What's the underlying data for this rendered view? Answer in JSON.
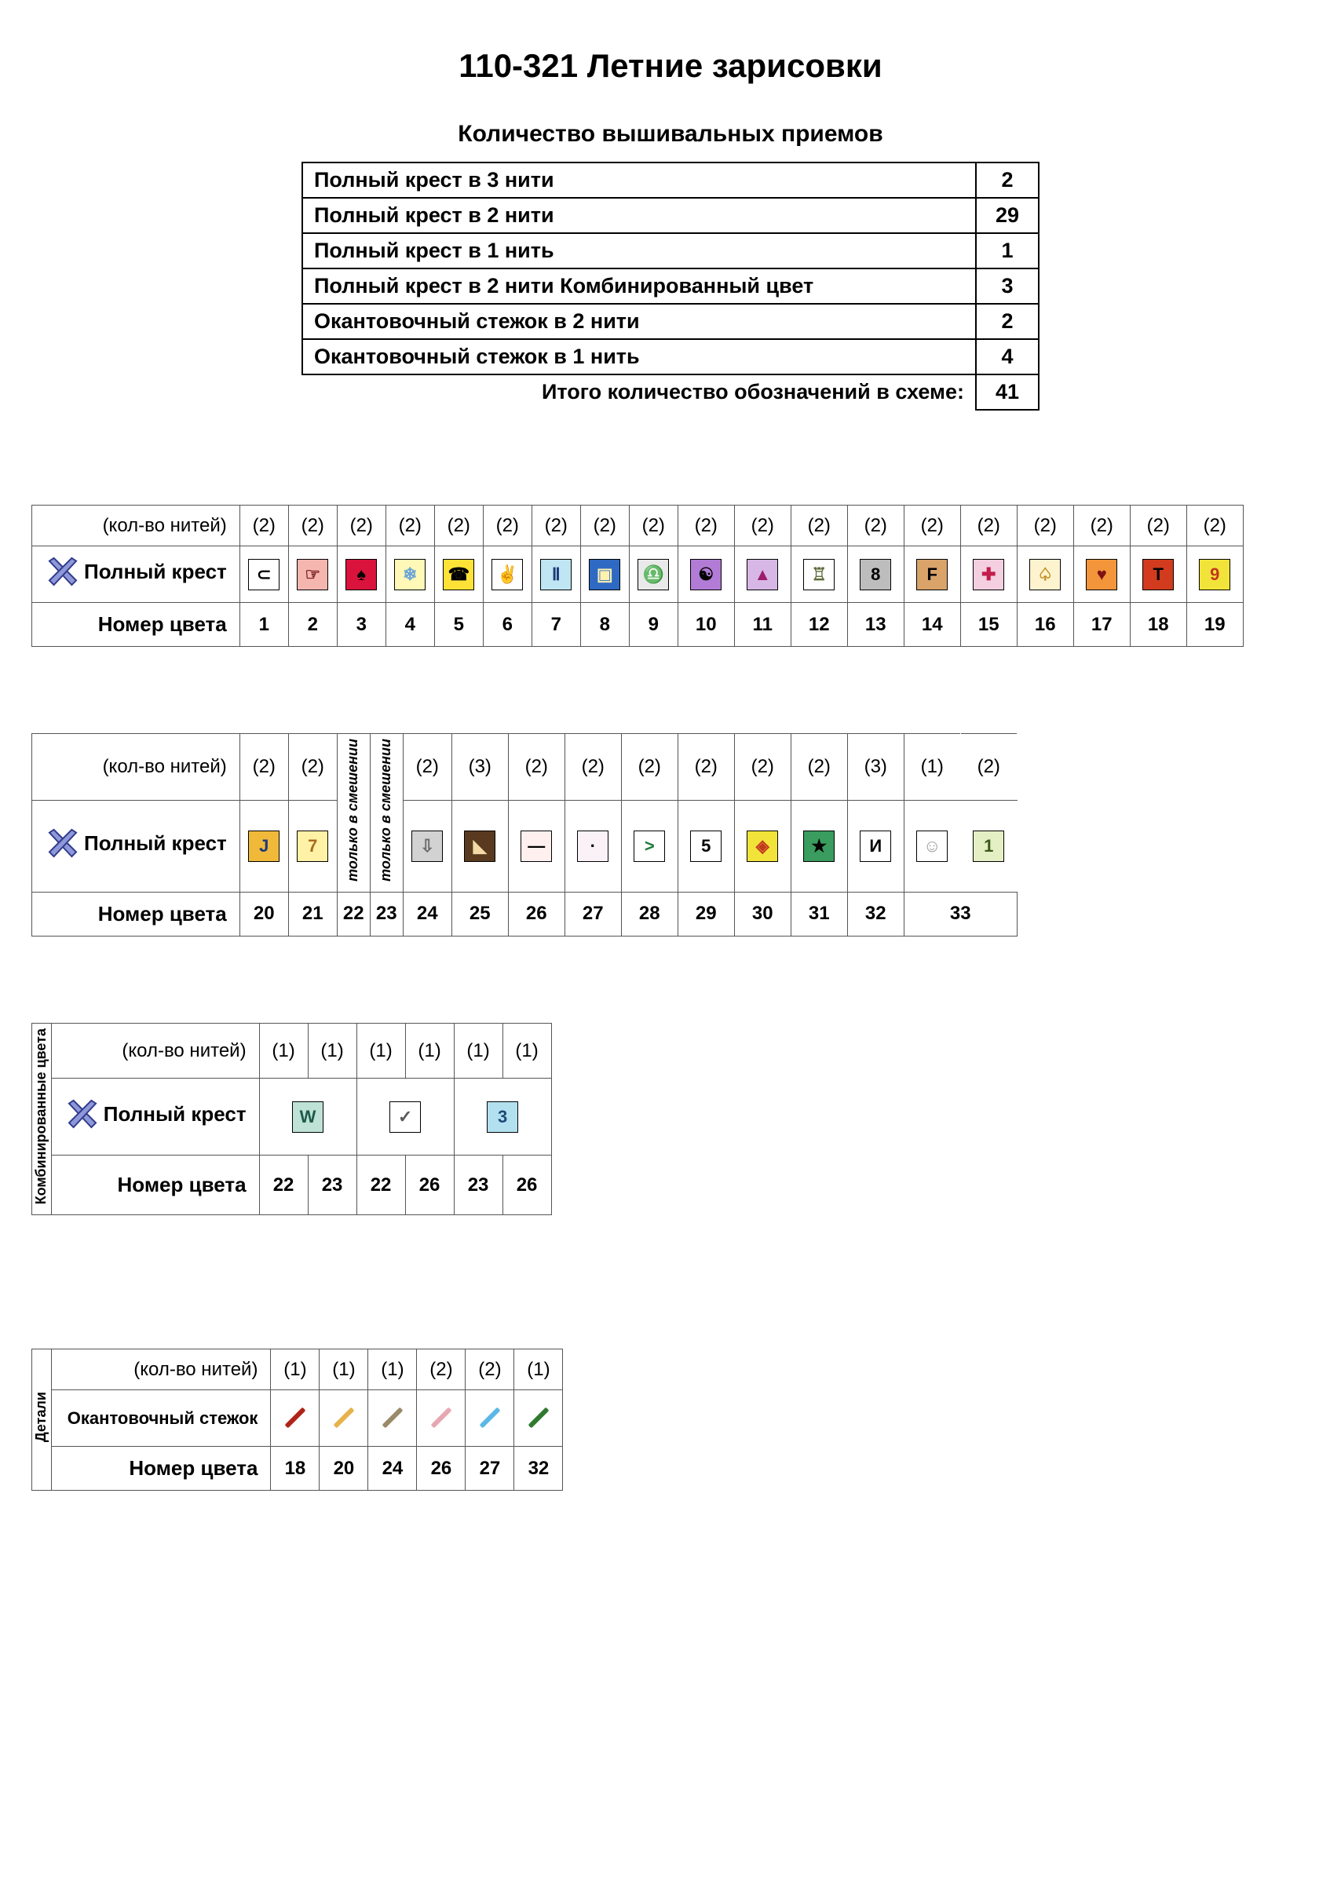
{
  "title": "110-321 Летние зарисовки",
  "subtitle": "Количество вышивальных приемов",
  "summary": {
    "rows": [
      {
        "label": "Полный крест в 3 нити",
        "value": "2"
      },
      {
        "label": "Полный крест в 2 нити",
        "value": "29"
      },
      {
        "label": "Полный крест в 1 нить",
        "value": "1"
      },
      {
        "label": "Полный крест в 2 нити Комбинированный цвет",
        "value": "3"
      },
      {
        "label": "Окантовочный стежок в 2 нити",
        "value": "2"
      },
      {
        "label": "Окантовочный стежок в 1 нить",
        "value": "4"
      }
    ],
    "total_label": "Итого количество обозначений в схеме:",
    "total_value": "41"
  },
  "labels": {
    "threadcount": "(кол-во нитей)",
    "fullcross": "Полный крест",
    "colornum": "Номер цвета",
    "backstitch": "Окантовочный стежок",
    "combined": "Комбинированные цвета",
    "details": "Детали",
    "mixonly": "только в смешении"
  },
  "table1": {
    "cells": [
      {
        "threads": "(2)",
        "bg": "#ffffff",
        "fg": "#000000",
        "glyph": "⊂",
        "num": "1"
      },
      {
        "threads": "(2)",
        "bg": "#f5b6b0",
        "fg": "#7a1f1f",
        "glyph": "☞",
        "num": "2"
      },
      {
        "threads": "(2)",
        "bg": "#d9133b",
        "fg": "#000000",
        "glyph": "♠",
        "num": "3"
      },
      {
        "threads": "(2)",
        "bg": "#fff8b7",
        "fg": "#6aa4d6",
        "glyph": "❄",
        "num": "4"
      },
      {
        "threads": "(2)",
        "bg": "#ffe238",
        "fg": "#000000",
        "glyph": "☎",
        "num": "5"
      },
      {
        "threads": "(2)",
        "bg": "#ffffff",
        "fg": "#9a9a9a",
        "glyph": "✌",
        "num": "6"
      },
      {
        "threads": "(2)",
        "bg": "#bfe6f2",
        "fg": "#1d3c7a",
        "glyph": "Ⅱ",
        "num": "7"
      },
      {
        "threads": "(2)",
        "bg": "#2e69c4",
        "fg": "#fff2b0",
        "glyph": "▣",
        "num": "8"
      },
      {
        "threads": "(2)",
        "bg": "#e9e9e9",
        "fg": "#000000",
        "glyph": "♎",
        "num": "9"
      },
      {
        "threads": "(2)",
        "bg": "#b17bd6",
        "fg": "#000000",
        "glyph": "☯",
        "num": "10"
      },
      {
        "threads": "(2)",
        "bg": "#d7b7e6",
        "fg": "#9c1d6b",
        "glyph": "▲",
        "num": "11"
      },
      {
        "threads": "(2)",
        "bg": "#ffffff",
        "fg": "#5e6b3a",
        "glyph": "♖",
        "num": "12"
      },
      {
        "threads": "(2)",
        "bg": "#bdbdbd",
        "fg": "#000000",
        "glyph": "8",
        "num": "13"
      },
      {
        "threads": "(2)",
        "bg": "#d9a36a",
        "fg": "#000000",
        "glyph": "F",
        "num": "14"
      },
      {
        "threads": "(2)",
        "bg": "#f4cfe0",
        "fg": "#c21d4c",
        "glyph": "✚",
        "num": "15"
      },
      {
        "threads": "(2)",
        "bg": "#fdf4cf",
        "fg": "#c28a1e",
        "glyph": "♤",
        "num": "16"
      },
      {
        "threads": "(2)",
        "bg": "#f2953b",
        "fg": "#7c1212",
        "glyph": "♥",
        "num": "17"
      },
      {
        "threads": "(2)",
        "bg": "#d23b1e",
        "fg": "#000000",
        "glyph": "T",
        "num": "18"
      },
      {
        "threads": "(2)",
        "bg": "#f2e33a",
        "fg": "#c2371e",
        "glyph": "9",
        "num": "19"
      }
    ]
  },
  "table2": {
    "cells": [
      {
        "threads": "(2)",
        "bg": "#f0b93a",
        "fg": "#1f3a7a",
        "glyph": "J",
        "num": "20"
      },
      {
        "threads": "(2)",
        "bg": "#fff2a6",
        "fg": "#a86b1e",
        "glyph": "7",
        "num": "21"
      },
      {
        "mix": true,
        "num": "22"
      },
      {
        "mix": true,
        "num": "23"
      },
      {
        "threads": "(2)",
        "bg": "#d2d2d2",
        "fg": "#6b6b6b",
        "glyph": "⇩",
        "num": "24"
      },
      {
        "threads": "(3)",
        "bg": "#5a3a1e",
        "fg": "#f2d9a6",
        "glyph": "◣",
        "num": "25"
      },
      {
        "threads": "(2)",
        "bg": "#fff0f0",
        "fg": "#000000",
        "glyph": "—",
        "num": "26"
      },
      {
        "threads": "(2)",
        "bg": "#faf2f6",
        "fg": "#000000",
        "glyph": "·",
        "num": "27"
      },
      {
        "threads": "(2)",
        "bg": "#ffffff",
        "fg": "#1e7a3a",
        "glyph": ">",
        "num": "28"
      },
      {
        "threads": "(2)",
        "bg": "#ffffff",
        "fg": "#000000",
        "glyph": "5",
        "num": "29"
      },
      {
        "threads": "(2)",
        "bg": "#f2e33a",
        "fg": "#c2371e",
        "glyph": "◈",
        "num": "30"
      },
      {
        "threads": "(2)",
        "bg": "#3a9c5e",
        "fg": "#000000",
        "glyph": "★",
        "num": "31"
      },
      {
        "threads": "(3)",
        "bg": "#ffffff",
        "fg": "#000000",
        "glyph": "И",
        "num": "32"
      },
      {
        "threads": "(1)",
        "bg": "#ffffff",
        "fg": "#9a9a9a",
        "glyph": "☺",
        "num": "",
        "noNum": true
      },
      {
        "threads": "(2)",
        "bg": "#e4f0c4",
        "fg": "#3a5a1e",
        "glyph": "1",
        "num": "33"
      }
    ],
    "lastPairNum": "33"
  },
  "table3": {
    "pairs": [
      {
        "t1": "(1)",
        "t2": "(1)",
        "bg": "#bfe2d6",
        "fg": "#1e5a4a",
        "glyph": "W",
        "n1": "22",
        "n2": "23"
      },
      {
        "t1": "(1)",
        "t2": "(1)",
        "bg": "#ffffff",
        "fg": "#5a5a5a",
        "glyph": "✓",
        "n1": "22",
        "n2": "26"
      },
      {
        "t1": "(1)",
        "t2": "(1)",
        "bg": "#b3e0ef",
        "fg": "#1e4a7a",
        "glyph": "3",
        "n1": "23",
        "n2": "26"
      }
    ]
  },
  "table4": {
    "cells": [
      {
        "threads": "(1)",
        "color": "#b02318",
        "num": "18"
      },
      {
        "threads": "(1)",
        "color": "#e6b24a",
        "num": "20"
      },
      {
        "threads": "(1)",
        "color": "#9a8a6a",
        "num": "24"
      },
      {
        "threads": "(2)",
        "color": "#e6a7b3",
        "num": "26"
      },
      {
        "threads": "(2)",
        "color": "#5bb7e6",
        "num": "27"
      },
      {
        "threads": "(1)",
        "color": "#2f7a2f",
        "num": "32"
      }
    ]
  },
  "colors": {
    "xicon_fill": "#8e97d8",
    "xicon_stroke": "#2f3a8a"
  }
}
